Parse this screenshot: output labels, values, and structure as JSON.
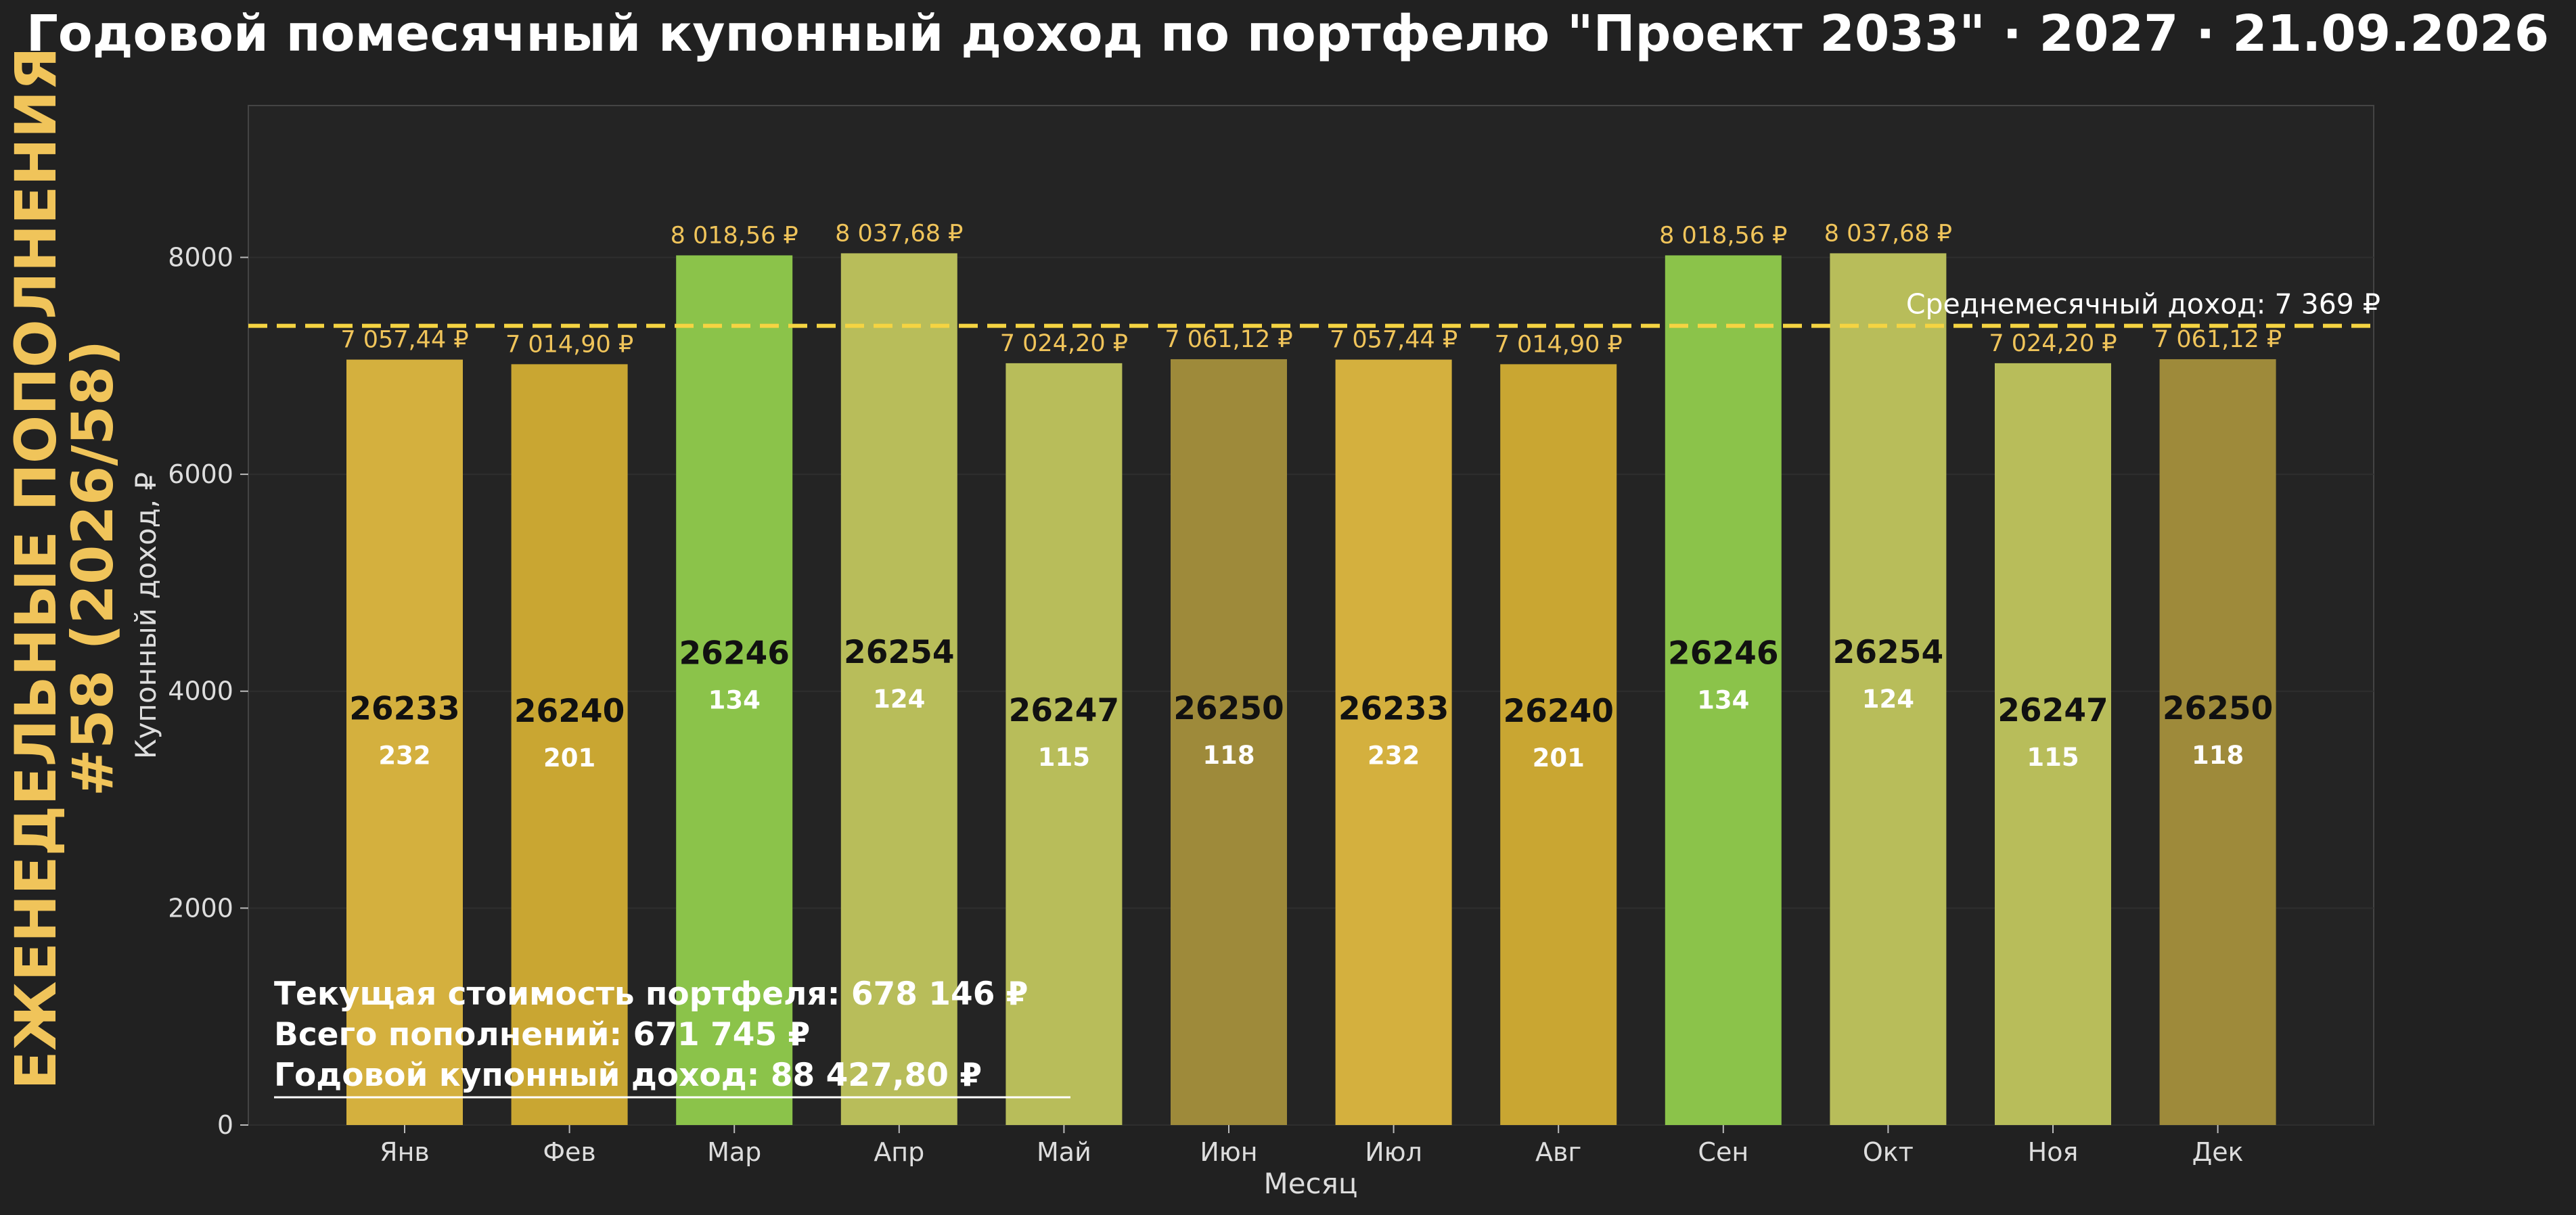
{
  "title": "Годовой помесячный купонный доход по портфелю \"Проект 2033\" · 2027 · 21.09.2026",
  "side_title": {
    "line1": "ЕЖЕНЕДЕЛЬНЫЕ ПОПОЛНЕНИЯ",
    "line2": "#58 (2026/58)"
  },
  "summary": {
    "line1": "Текущая стоимость портфеля: 678 146 ₽",
    "line2": "Всего пополнений: 671 745 ₽",
    "line3": "Годовой купонный доход: 88 427,80 ₽"
  },
  "chart_data": {
    "type": "bar",
    "xlabel": "Месяц",
    "ylabel": "Купонный доход, ₽",
    "ylim": [
      0,
      9400
    ],
    "yticks": [
      0,
      2000,
      4000,
      6000,
      8000
    ],
    "grid": true,
    "categories": [
      "Янв",
      "Фев",
      "Мар",
      "Апр",
      "Май",
      "Июн",
      "Июл",
      "Авг",
      "Сен",
      "Окт",
      "Ноя",
      "Дек"
    ],
    "values": [
      7057.44,
      7014.9,
      8018.56,
      8037.68,
      7024.2,
      7061.12,
      7057.44,
      7014.9,
      8018.56,
      8037.68,
      7024.2,
      7061.12
    ],
    "value_labels": [
      "7 057,44 ₽",
      "7 014,90 ₽",
      "8 018,56 ₽",
      "8 037,68 ₽",
      "7 024,20 ₽",
      "7 061,12 ₽",
      "7 057,44 ₽",
      "7 014,90 ₽",
      "8 018,56 ₽",
      "8 037,68 ₽",
      "7 024,20 ₽",
      "7 061,12 ₽"
    ],
    "bond_codes": [
      "26233",
      "26240",
      "26246",
      "26254",
      "26247",
      "26250",
      "26233",
      "26240",
      "26246",
      "26254",
      "26247",
      "26250"
    ],
    "bond_counts": [
      "232",
      "201",
      "134",
      "124",
      "115",
      "118",
      "232",
      "201",
      "134",
      "124",
      "115",
      "118"
    ],
    "colors": [
      "#d4b03e",
      "#c9a632",
      "#8bc34a",
      "#b8bd5a",
      "#b8bd5a",
      "#9e8a3a",
      "#d4b03e",
      "#c9a632",
      "#8bc34a",
      "#b8bd5a",
      "#b8bd5a",
      "#9e8a3a"
    ],
    "average": 7369,
    "average_label": "Среднемесячный доход: 7 369 ₽",
    "average_color": "#f5d442"
  }
}
